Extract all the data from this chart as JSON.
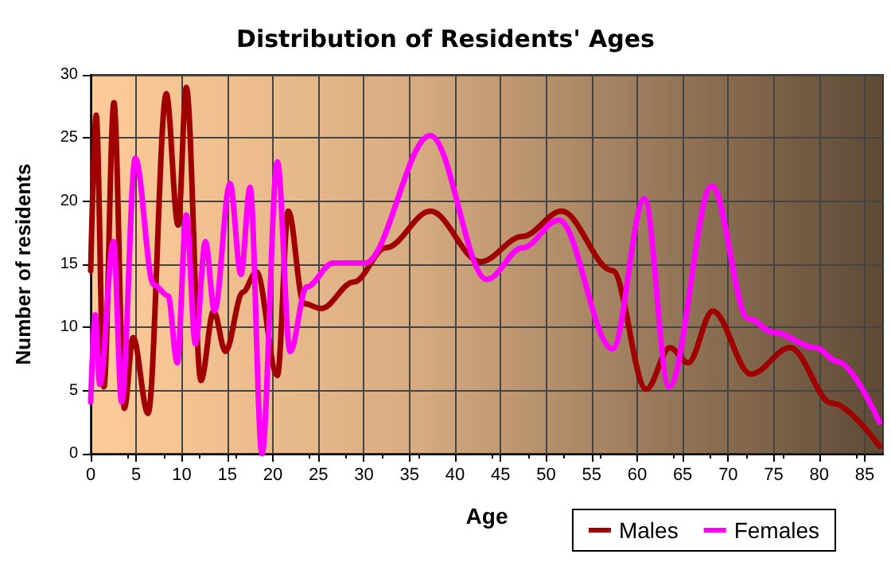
{
  "chart_data": {
    "type": "line",
    "title": "Distribution of Residents' Ages",
    "xlabel": "Age",
    "ylabel": "Number of residents",
    "xlim": [
      0,
      87
    ],
    "xticks": [
      0,
      5,
      10,
      15,
      20,
      25,
      30,
      35,
      40,
      45,
      50,
      55,
      60,
      65,
      70,
      75,
      80,
      85
    ],
    "ylim": [
      0,
      30
    ],
    "yticks": [
      0,
      5,
      10,
      15,
      20,
      25,
      30
    ],
    "grid": true,
    "legend": "bottom right",
    "marker": "none",
    "line_style": "solid",
    "series": [
      {
        "name": "Males",
        "color": "#a00000",
        "x": [
          0,
          0.6,
          1.45,
          2.55,
          3.7,
          4.65,
          6.3,
          8.3,
          9.6,
          10.5,
          12.1,
          13.5,
          14.8,
          16.7,
          18.2,
          20.5,
          21.7,
          23.4,
          25.3,
          28.9,
          32.4,
          37.3,
          42.8,
          47.4,
          51.7,
          57.3,
          61,
          63.6,
          65.6,
          68.3,
          72.5,
          76.8,
          81.4,
          86.6
        ],
        "values": [
          14.5,
          26.8,
          5.3,
          27.8,
          3.6,
          9.2,
          3.2,
          28.5,
          18.1,
          29,
          5.8,
          11.3,
          8.1,
          12.8,
          14.4,
          6.2,
          19.2,
          11.9,
          11.5,
          13.6,
          16.3,
          19.2,
          15.2,
          17.2,
          19.2,
          14.5,
          5.1,
          8.4,
          7.2,
          11.3,
          6.3,
          8.4,
          4,
          0.6
        ]
      },
      {
        "name": "Females",
        "color": "#ff00ff",
        "x": [
          0,
          0.5,
          1,
          2.5,
          3.4,
          4.9,
          6.9,
          8.5,
          9.5,
          10.5,
          11.5,
          12.6,
          13.6,
          15.3,
          16.5,
          17.5,
          18.8,
          20.5,
          21.9,
          23.7,
          26.6,
          30.1,
          37.3,
          43.5,
          47.4,
          51.4,
          57.3,
          60.8,
          63.5,
          68.2,
          72.2,
          75,
          79.6,
          82,
          86.6
        ],
        "values": [
          4.1,
          11,
          5.5,
          16.8,
          4.1,
          23.4,
          13.4,
          12.5,
          7.2,
          18.9,
          8.7,
          16.8,
          11.3,
          21.4,
          14.2,
          21.1,
          0,
          23.1,
          8.1,
          13.2,
          15.1,
          15.1,
          25.2,
          13.8,
          16.3,
          18.5,
          8.3,
          20.2,
          5.3,
          21.2,
          10.7,
          9.6,
          8.4,
          7.3,
          2.5
        ]
      }
    ]
  }
}
